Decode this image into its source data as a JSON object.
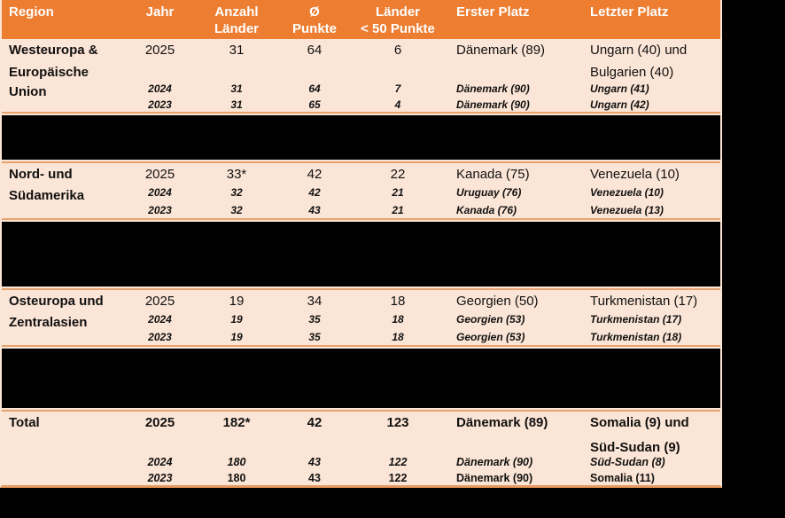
{
  "table": {
    "colors": {
      "header_bg": "#ED7D31",
      "header_text": "#FFFFFF",
      "row_bg": "#FBE5D6",
      "text": "#111111",
      "redaction": "#000000",
      "divider_line": "#E9A26E"
    },
    "header": {
      "region": "Region",
      "jahr": "Jahr",
      "anzahl_line1": "Anzahl",
      "anzahl_line2": "Länder",
      "punkte_line1": "Ø",
      "punkte_line2": "Punkte",
      "unter50_line1": "Länder",
      "unter50_line2": "< 50 Punkte",
      "erster": "Erster Platz",
      "letzter": "Letzter Platz"
    },
    "sections": [
      {
        "region_line1": "Westeuropa &",
        "region_line2": "Europäische",
        "region_line3": "Union",
        "y2025": {
          "jahr": "2025",
          "anzahl": "31",
          "punkte": "64",
          "unter50": "6",
          "erster": "Dänemark (89)",
          "letzter_line1": "Ungarn (40) und",
          "letzter_line2": "Bulgarien (40)"
        },
        "y2024": {
          "jahr": "2024",
          "anzahl": "31",
          "punkte": "64",
          "unter50": "7",
          "erster": "Dänemark (90)",
          "letzter": "Ungarn (41)"
        },
        "y2023": {
          "jahr": "2023",
          "anzahl": "31",
          "punkte": "65",
          "unter50": "4",
          "erster": "Dänemark (90)",
          "letzter": "Ungarn (42)"
        }
      },
      {
        "region_line1": "Nord- und",
        "region_line2": "Südamerika",
        "y2025": {
          "jahr": "2025",
          "anzahl": "33*",
          "punkte": "42",
          "unter50": "22",
          "erster": "Kanada (75)",
          "letzter": "Venezuela (10)"
        },
        "y2024": {
          "jahr": "2024",
          "anzahl": "32",
          "punkte": "42",
          "unter50": "21",
          "erster": "Uruguay (76)",
          "letzter": "Venezuela (10)"
        },
        "y2023": {
          "jahr": "2023",
          "anzahl": "32",
          "punkte": "43",
          "unter50": "21",
          "erster": "Kanada (76)",
          "letzter": "Venezuela (13)"
        }
      },
      {
        "region_line1": "Osteuropa und",
        "region_line2": "Zentralasien",
        "y2025": {
          "jahr": "2025",
          "anzahl": "19",
          "punkte": "34",
          "unter50": "18",
          "erster": "Georgien (50)",
          "letzter": "Turkmenistan (17)"
        },
        "y2024": {
          "jahr": "2024",
          "anzahl": "19",
          "punkte": "35",
          "unter50": "18",
          "erster": "Georgien (53)",
          "letzter": "Turkmenistan (17)"
        },
        "y2023": {
          "jahr": "2023",
          "anzahl": "19",
          "punkte": "35",
          "unter50": "18",
          "erster": "Georgien (53)",
          "letzter": "Turkmenistan (18)"
        }
      },
      {
        "region_line1": "Total",
        "y2025": {
          "jahr": "2025",
          "anzahl": "182*",
          "punkte": "42",
          "unter50": "123",
          "erster": "Dänemark (89)",
          "letzter_line1": "Somalia (9) und",
          "letzter_line2": "Süd-Sudan (9)"
        },
        "y2024": {
          "jahr": "2024",
          "anzahl": "180",
          "punkte": "43",
          "unter50": "122",
          "erster": "Dänemark (90)",
          "letzter": "Süd-Sudan (8)"
        },
        "y2023": {
          "jahr": "2023",
          "anzahl": "180",
          "punkte": "43",
          "unter50": "122",
          "erster": "Dänemark (90)",
          "letzter": "Somalia (11)"
        }
      }
    ]
  }
}
